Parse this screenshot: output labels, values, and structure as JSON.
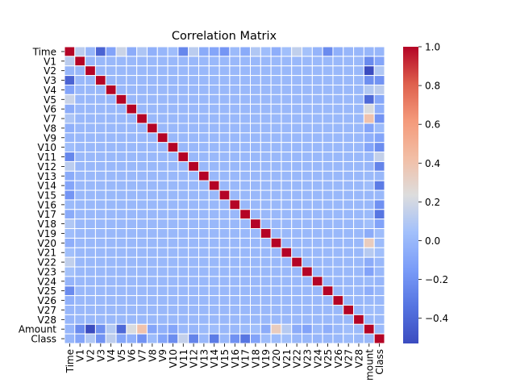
{
  "chart_data": {
    "type": "heatmap",
    "title": "Correlation Matrix",
    "labels": [
      "Time",
      "V1",
      "V2",
      "V3",
      "V4",
      "V5",
      "V6",
      "V7",
      "V8",
      "V9",
      "V10",
      "V11",
      "V12",
      "V13",
      "V14",
      "V15",
      "V16",
      "V17",
      "V18",
      "V19",
      "V20",
      "V21",
      "V22",
      "V23",
      "V24",
      "V25",
      "V26",
      "V27",
      "V28",
      "Amount",
      "Class"
    ],
    "visible_x_tick_labels": [
      "Time",
      "V1",
      "V2",
      "V3",
      "V4",
      "V5",
      "V6",
      "V7",
      "V8",
      "V9",
      "V10",
      "V11",
      "V12",
      "V13",
      "V14",
      "V15",
      "V16",
      "V17",
      "V18",
      "V19",
      "V20",
      "V21",
      "V22",
      "V23",
      "V24",
      "V25",
      "V26",
      "V27",
      "V28",
      "mount",
      "Class"
    ],
    "colormap": "coolwarm",
    "colorbar_range": [
      -0.53,
      1.0
    ],
    "colorbar_ticks": [
      "1.0",
      "0.8",
      "0.6",
      "0.4",
      "0.2",
      "0.0",
      "−0.2",
      "−0.4"
    ],
    "grid_line_color": "#ffffff",
    "row_col_values": {
      "Time_row": [
        1.0,
        0.12,
        -0.01,
        -0.42,
        -0.11,
        0.17,
        -0.06,
        0.08,
        -0.04,
        -0.01,
        0.03,
        -0.25,
        0.12,
        -0.07,
        -0.1,
        -0.18,
        0.01,
        -0.07,
        0.09,
        0.03,
        -0.05,
        0.04,
        0.14,
        0.05,
        -0.02,
        -0.23,
        -0.04,
        -0.01,
        -0.01,
        -0.01,
        -0.01
      ],
      "Amount_row": [
        -0.01,
        -0.23,
        -0.53,
        -0.21,
        0.1,
        -0.39,
        0.22,
        0.4,
        -0.1,
        -0.04,
        -0.1,
        0.0,
        -0.01,
        0.01,
        0.03,
        -0.0,
        -0.0,
        0.01,
        0.04,
        -0.06,
        0.34,
        0.11,
        -0.06,
        -0.11,
        0.01,
        -0.05,
        -0.0,
        0.03,
        0.01,
        1.0,
        0.01
      ],
      "Class_row": [
        -0.01,
        -0.1,
        0.09,
        -0.19,
        0.13,
        -0.09,
        -0.04,
        -0.19,
        0.02,
        -0.1,
        -0.22,
        0.15,
        -0.26,
        -0.0,
        -0.3,
        -0.0,
        -0.2,
        -0.33,
        -0.11,
        0.03,
        0.02,
        0.04,
        0.0,
        -0.0,
        -0.01,
        0.0,
        0.0,
        0.02,
        0.01,
        0.01,
        1.0
      ]
    }
  }
}
